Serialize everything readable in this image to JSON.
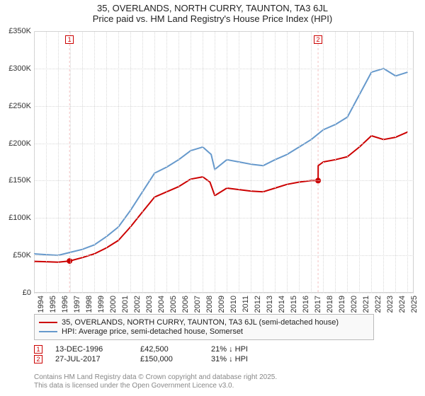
{
  "title": {
    "line1": "35, OVERLANDS, NORTH CURRY, TAUNTON, TA3 6JL",
    "line2": "Price paid vs. HM Land Registry's House Price Index (HPI)",
    "fontsize": 13,
    "color": "#222222"
  },
  "chart": {
    "type": "line",
    "background_color": "#ffffff",
    "grid_color": "#d8d8d8",
    "border_color": "#cfcfcf",
    "x": {
      "min": 1994,
      "max": 2025.5,
      "ticks": [
        1994,
        1995,
        1996,
        1997,
        1998,
        1999,
        2000,
        2001,
        2002,
        2003,
        2004,
        2005,
        2006,
        2007,
        2008,
        2009,
        2010,
        2011,
        2012,
        2013,
        2014,
        2015,
        2016,
        2017,
        2018,
        2019,
        2020,
        2021,
        2022,
        2023,
        2024,
        2025
      ],
      "label_fontsize": 11,
      "label_color": "#333333",
      "rotation": -90
    },
    "y": {
      "min": 0,
      "max": 350000,
      "ticks": [
        0,
        50000,
        100000,
        150000,
        200000,
        250000,
        300000,
        350000
      ],
      "tick_labels": [
        "£0",
        "£50K",
        "£100K",
        "£150K",
        "£200K",
        "£250K",
        "£300K",
        "£350K"
      ],
      "label_fontsize": 11,
      "label_color": "#333333"
    },
    "series": [
      {
        "name": "property",
        "label": "35, OVERLANDS, NORTH CURRY, TAUNTON, TA3 6JL (semi-detached house)",
        "color": "#cc0000",
        "width": 2,
        "data": [
          [
            1994,
            42000
          ],
          [
            1995,
            41500
          ],
          [
            1996,
            41000
          ],
          [
            1996.95,
            42500
          ],
          [
            1998,
            47000
          ],
          [
            1999,
            52000
          ],
          [
            2000,
            60000
          ],
          [
            2001,
            70000
          ],
          [
            2002,
            88000
          ],
          [
            2003,
            108000
          ],
          [
            2004,
            128000
          ],
          [
            2005,
            135000
          ],
          [
            2006,
            142000
          ],
          [
            2007,
            152000
          ],
          [
            2008,
            155000
          ],
          [
            2008.6,
            148000
          ],
          [
            2009,
            130000
          ],
          [
            2010,
            140000
          ],
          [
            2011,
            138000
          ],
          [
            2012,
            136000
          ],
          [
            2013,
            135000
          ],
          [
            2014,
            140000
          ],
          [
            2015,
            145000
          ],
          [
            2016,
            148000
          ],
          [
            2017,
            150000
          ],
          [
            2017.57,
            150000
          ],
          [
            2017.58,
            170000
          ],
          [
            2018,
            175000
          ],
          [
            2019,
            178000
          ],
          [
            2020,
            182000
          ],
          [
            2021,
            195000
          ],
          [
            2022,
            210000
          ],
          [
            2023,
            205000
          ],
          [
            2024,
            208000
          ],
          [
            2025,
            215000
          ]
        ]
      },
      {
        "name": "hpi",
        "label": "HPI: Average price, semi-detached house, Somerset",
        "color": "#6699cc",
        "width": 2,
        "data": [
          [
            1994,
            52000
          ],
          [
            1995,
            51000
          ],
          [
            1996,
            50000
          ],
          [
            1997,
            54000
          ],
          [
            1998,
            58000
          ],
          [
            1999,
            64000
          ],
          [
            2000,
            75000
          ],
          [
            2001,
            88000
          ],
          [
            2002,
            110000
          ],
          [
            2003,
            135000
          ],
          [
            2004,
            160000
          ],
          [
            2005,
            168000
          ],
          [
            2006,
            178000
          ],
          [
            2007,
            190000
          ],
          [
            2008,
            195000
          ],
          [
            2008.7,
            185000
          ],
          [
            2009,
            165000
          ],
          [
            2010,
            178000
          ],
          [
            2011,
            175000
          ],
          [
            2012,
            172000
          ],
          [
            2013,
            170000
          ],
          [
            2014,
            178000
          ],
          [
            2015,
            185000
          ],
          [
            2016,
            195000
          ],
          [
            2017,
            205000
          ],
          [
            2018,
            218000
          ],
          [
            2019,
            225000
          ],
          [
            2020,
            235000
          ],
          [
            2021,
            265000
          ],
          [
            2022,
            295000
          ],
          [
            2023,
            300000
          ],
          [
            2024,
            290000
          ],
          [
            2025,
            295000
          ]
        ]
      }
    ],
    "markers": [
      {
        "n": "1",
        "x": 1996.95,
        "y": 42500,
        "vline_color": "#e8888880"
      },
      {
        "n": "2",
        "x": 2017.57,
        "y": 150000,
        "vline_color": "#e8888880"
      }
    ]
  },
  "legend": {
    "border_color": "#bbbbbb",
    "background_color": "#f9f9f9",
    "fontsize": 11,
    "items": [
      {
        "color": "#cc0000",
        "label": "35, OVERLANDS, NORTH CURRY, TAUNTON, TA3 6JL (semi-detached house)"
      },
      {
        "color": "#6699cc",
        "label": "HPI: Average price, semi-detached house, Somerset"
      }
    ]
  },
  "points_table": {
    "fontsize": 11,
    "marker_color": "#cc0000",
    "rows": [
      {
        "n": "1",
        "date": "13-DEC-1996",
        "price": "£42,500",
        "delta": "21% ↓ HPI"
      },
      {
        "n": "2",
        "date": "27-JUL-2017",
        "price": "£150,000",
        "delta": "31% ↓ HPI"
      }
    ]
  },
  "footer": {
    "line1": "Contains HM Land Registry data © Crown copyright and database right 2025.",
    "line2": "This data is licensed under the Open Government Licence v3.0.",
    "color": "#888888",
    "fontsize": 10
  }
}
